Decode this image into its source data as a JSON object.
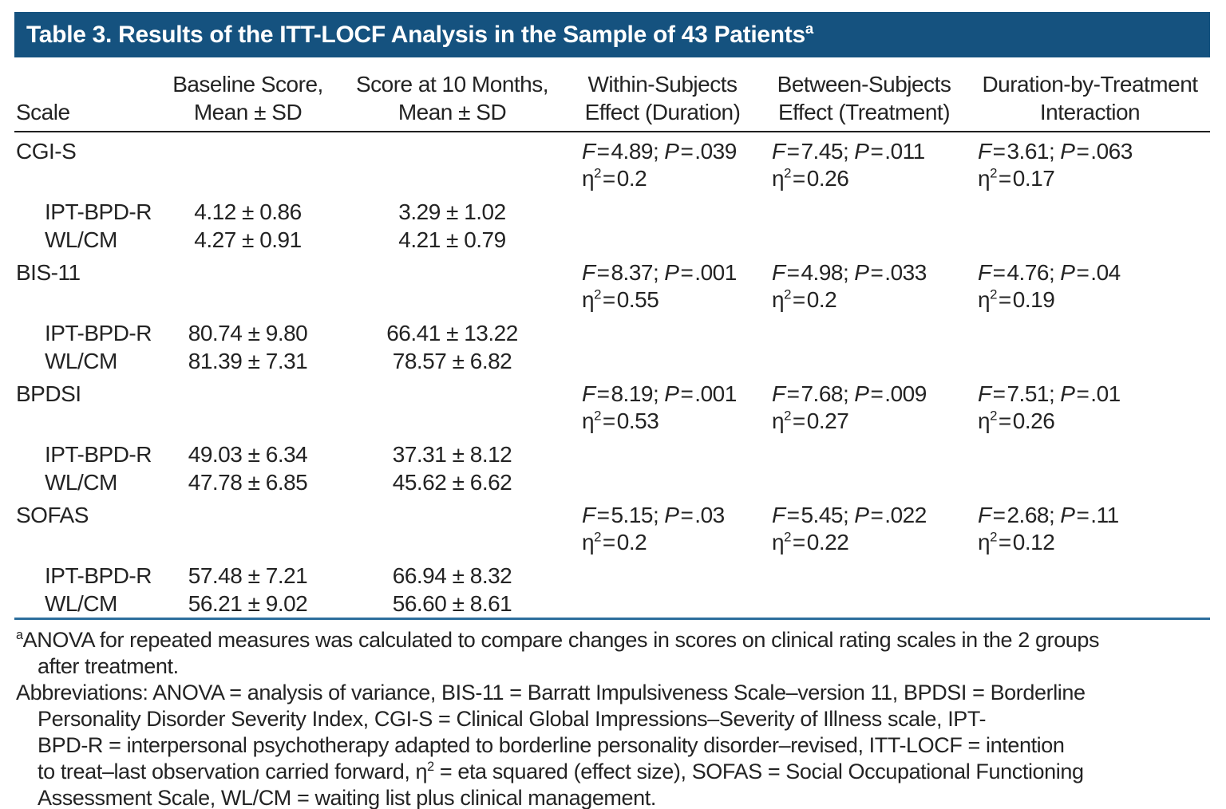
{
  "title": {
    "text": "Table 3. Results of the ITT-LOCF Analysis in the Sample of 43 Patients",
    "superscript": "a"
  },
  "colors": {
    "header_bar_blue": "#15527f",
    "rule_blue": "#2d6e9d",
    "header_rule_black": "#1f1f1f",
    "text": "#232323",
    "title_text": "#ffffff"
  },
  "labels": {
    "f": "F",
    "p": "P",
    "eq": "=",
    "sep": ";",
    "eta": "η",
    "sq": "2"
  },
  "columns": [
    {
      "line1": "",
      "line2": "Scale"
    },
    {
      "line1": "Baseline Score,",
      "line2": "Mean ± SD"
    },
    {
      "line1": "Score at 10 Months,",
      "line2": "Mean ± SD"
    },
    {
      "line1": "Within-Subjects",
      "line2": "Effect (Duration)"
    },
    {
      "line1": "Between-Subjects",
      "line2": "Effect (Treatment)"
    },
    {
      "line1": "Duration-by-Treatment",
      "line2": "Interaction"
    }
  ],
  "groups": [
    {
      "scale": "CGI-S",
      "within": {
        "f": "4.89",
        "p": ".039",
        "eta": "0.2"
      },
      "between": {
        "f": "7.45",
        "p": ".011",
        "eta": "0.26"
      },
      "interaction": {
        "f": "3.61",
        "p": ".063",
        "eta": "0.17"
      },
      "rows": [
        {
          "label": "IPT-BPD-R",
          "baseline": "4.12 ± 0.86",
          "months10": "3.29 ± 1.02"
        },
        {
          "label": "WL/CM",
          "baseline": "4.27 ± 0.91",
          "months10": "4.21 ± 0.79"
        }
      ]
    },
    {
      "scale": "BIS-11",
      "within": {
        "f": "8.37",
        "p": ".001",
        "eta": "0.55"
      },
      "between": {
        "f": "4.98",
        "p": ".033",
        "eta": "0.2"
      },
      "interaction": {
        "f": "4.76",
        "p": ".04",
        "eta": "0.19"
      },
      "rows": [
        {
          "label": "IPT-BPD-R",
          "baseline": "80.74 ± 9.80",
          "months10": "66.41 ± 13.22"
        },
        {
          "label": "WL/CM",
          "baseline": "81.39 ± 7.31",
          "months10": "78.57 ± 6.82"
        }
      ]
    },
    {
      "scale": "BPDSI",
      "within": {
        "f": "8.19",
        "p": ".001",
        "eta": "0.53"
      },
      "between": {
        "f": "7.68",
        "p": ".009",
        "eta": "0.27"
      },
      "interaction": {
        "f": "7.51",
        "p": ".01",
        "eta": "0.26"
      },
      "rows": [
        {
          "label": "IPT-BPD-R",
          "baseline": "49.03 ± 6.34",
          "months10": "37.31 ± 8.12"
        },
        {
          "label": "WL/CM",
          "baseline": "47.78 ± 6.85",
          "months10": "45.62 ± 6.62"
        }
      ]
    },
    {
      "scale": "SOFAS",
      "within": {
        "f": "5.15",
        "p": ".03",
        "eta": "0.2"
      },
      "between": {
        "f": "5.45",
        "p": ".022",
        "eta": "0.22"
      },
      "interaction": {
        "f": "2.68",
        "p": ".11",
        "eta": "0.12"
      },
      "rows": [
        {
          "label": "IPT-BPD-R",
          "baseline": "57.48 ± 7.21",
          "months10": "66.94 ± 8.32"
        },
        {
          "label": "WL/CM",
          "baseline": "56.21 ± 9.02",
          "months10": "56.60 ± 8.61"
        }
      ]
    }
  ],
  "footnotes": {
    "a": {
      "marker": "a",
      "lines": [
        "ANOVA for repeated measures was calculated to compare changes in scores on clinical rating scales in the 2 groups",
        "after treatment."
      ]
    },
    "abbreviations": {
      "lines": [
        {
          "pre": "Abbreviations: ANOVA = analysis of variance, BIS-11 = Barratt Impulsiveness Scale–version 11, BPDSI = Borderline",
          "sup": "",
          "post": ""
        },
        {
          "pre": "Personality Disorder Severity Index, CGI-S = Clinical Global Impressions–Severity of Illness scale, IPT-",
          "sup": "",
          "post": ""
        },
        {
          "pre": "BPD-R = interpersonal psychotherapy adapted to borderline personality disorder–revised, ITT-LOCF = intention",
          "sup": "",
          "post": ""
        },
        {
          "pre": "to treat–last observation carried forward, η",
          "sup": "2",
          "post": " = eta squared (effect size), SOFAS = Social Occupational Functioning"
        },
        {
          "pre": "Assessment Scale, WL/CM = waiting list plus clinical management.",
          "sup": "",
          "post": ""
        }
      ]
    }
  }
}
